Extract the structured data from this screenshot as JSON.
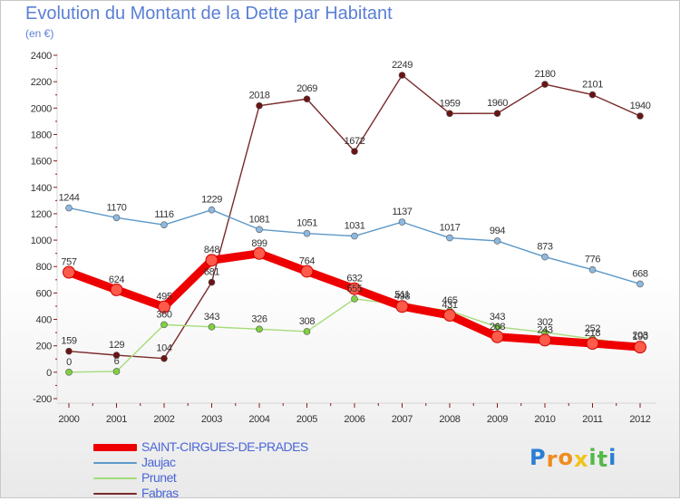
{
  "title": "Evolution du Montant de la Dette par Habitant",
  "subtitle": "(en €)",
  "logo": {
    "letters": [
      "P",
      "r",
      "o",
      "x",
      "i",
      "t",
      "i"
    ],
    "colors": [
      "#2a7fd4",
      "#f08c1e",
      "#f08c1e",
      "#f0c419",
      "#54b848",
      "#54b848",
      "#2a7fd4"
    ]
  },
  "chart_data": {
    "type": "line",
    "title": "Evolution du Montant de la Dette par Habitant",
    "ylabel": "(en €)",
    "xlabel": "",
    "x": [
      2000,
      2001,
      2002,
      2003,
      2004,
      2005,
      2006,
      2007,
      2008,
      2009,
      2010,
      2011,
      2012
    ],
    "ylim": [
      -200,
      2400
    ],
    "yticks": [
      -200,
      0,
      200,
      400,
      600,
      800,
      1000,
      1200,
      1400,
      1600,
      1800,
      2000,
      2200,
      2400
    ],
    "grid": false,
    "legend": "bottom-left",
    "series": [
      {
        "name": "SAINT-CIRGUES-DE-PRADES",
        "color": "#ee0000",
        "marker": "#ff5a4a",
        "values": [
          757,
          624,
          495,
          848,
          899,
          764,
          632,
          498,
          431,
          268,
          243,
          218,
          190
        ]
      },
      {
        "name": "Jaujac",
        "color": "#5d99c9",
        "marker": "#8db9e0",
        "values": [
          1244,
          1170,
          1116,
          1229,
          1081,
          1051,
          1031,
          1137,
          1017,
          994,
          873,
          776,
          668
        ]
      },
      {
        "name": "Prunet",
        "color": "#a5dc79",
        "marker": "#80d040",
        "values": [
          0,
          6,
          360,
          343,
          326,
          308,
          555,
          511,
          465,
          343,
          302,
          252,
          203
        ]
      },
      {
        "name": "Fabras",
        "color": "#7a2a2a",
        "marker": "#6b1414",
        "values": [
          159,
          129,
          104,
          681,
          2018,
          2069,
          1672,
          2249,
          1959,
          1960,
          2180,
          2101,
          1940
        ]
      }
    ]
  }
}
